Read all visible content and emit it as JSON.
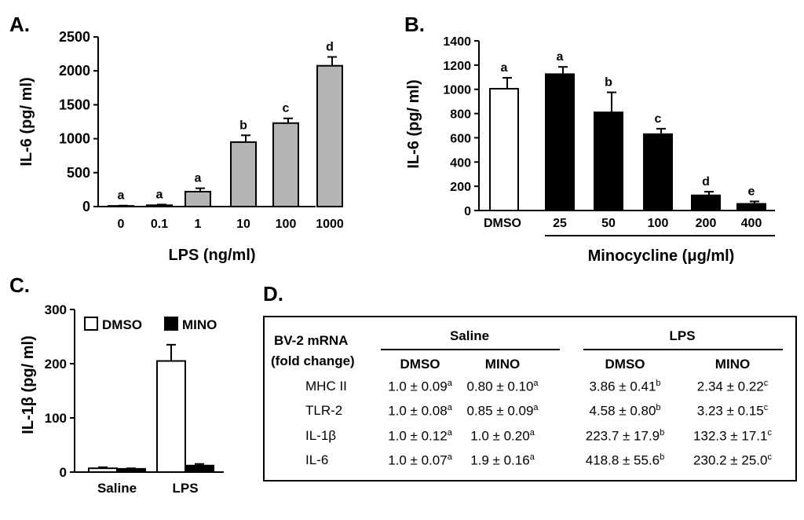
{
  "chart_data": [
    {
      "panel": "A.",
      "type": "bar",
      "xlabel": "LPS (ng/ml)",
      "ylabel": "IL-6 (pg/ ml)",
      "ylim": [
        0,
        2500
      ],
      "yticks": [
        "0",
        "500",
        "1000",
        "1500",
        "2000",
        "2500"
      ],
      "categories": [
        "0",
        "0.1",
        "1",
        "10",
        "100",
        "1000"
      ],
      "values": [
        10,
        20,
        220,
        950,
        1230,
        2075
      ],
      "errors": [
        5,
        10,
        50,
        100,
        70,
        130
      ],
      "letters": [
        "a",
        "a",
        "a",
        "b",
        "c",
        "d"
      ],
      "colors": [
        "#b4b4b4",
        "#b4b4b4",
        "#b4b4b4",
        "#b4b4b4",
        "#b4b4b4",
        "#b4b4b4"
      ]
    },
    {
      "panel": "B.",
      "type": "bar",
      "xlabel": "Minocycline (μg/ml)",
      "ylabel": "IL-6 (pg/ ml)",
      "ylim": [
        0,
        1400
      ],
      "yticks": [
        "0",
        "200",
        "400",
        "600",
        "800",
        "1000",
        "1200",
        "1400"
      ],
      "categories": [
        "DMSO",
        "25",
        "50",
        "100",
        "200",
        "400"
      ],
      "values": [
        1005,
        1125,
        810,
        630,
        125,
        55
      ],
      "errors": [
        90,
        60,
        165,
        45,
        30,
        20
      ],
      "letters": [
        "a",
        "a",
        "b",
        "c",
        "d",
        "e"
      ],
      "colors": [
        "#ffffff",
        "#000000",
        "#000000",
        "#000000",
        "#000000",
        "#000000"
      ]
    },
    {
      "panel": "C.",
      "type": "bar",
      "ylabel": "IL-1β (pg/ ml)",
      "ylim": [
        0,
        300
      ],
      "yticks": [
        "0",
        "100",
        "200",
        "300"
      ],
      "categories": [
        "Saline",
        "LPS"
      ],
      "legend_position": "top",
      "series": [
        {
          "name": "DMSO",
          "color": "#ffffff",
          "values": [
            7,
            205
          ],
          "errors": [
            2,
            30
          ]
        },
        {
          "name": "MINO",
          "color": "#000000",
          "values": [
            6,
            12
          ],
          "errors": [
            1,
            3
          ]
        }
      ]
    },
    {
      "panel": "D.",
      "type": "table",
      "row_header": [
        "BV-2 mRNA",
        "(fold change)"
      ],
      "groups": [
        "Saline",
        "LPS"
      ],
      "subheaders": [
        "DMSO",
        "MINO",
        "DMSO",
        "MINO"
      ],
      "rows": [
        {
          "label": "MHC II",
          "cells": [
            [
              "1.0 ± 0.09",
              "a"
            ],
            [
              "0.80 ± 0.10",
              "a"
            ],
            [
              "3.86 ± 0.41",
              "b"
            ],
            [
              "2.34 ± 0.22",
              "c"
            ]
          ]
        },
        {
          "label": "TLR-2",
          "cells": [
            [
              "1.0  ± 0.08",
              "a"
            ],
            [
              "0.85 ± 0.09",
              "a"
            ],
            [
              "4.58  ± 0.80",
              "b"
            ],
            [
              "3.23 ± 0.15",
              "c"
            ]
          ]
        },
        {
          "label": "IL-1β",
          "cells": [
            [
              "1.0  ± 0.12",
              "a"
            ],
            [
              "1.0  ± 0.20",
              "a"
            ],
            [
              "223.7 ± 17.9",
              "b"
            ],
            [
              "132.3 ± 17.1",
              "c"
            ]
          ]
        },
        {
          "label": "IL-6",
          "cells": [
            [
              "1.0  ± 0.07",
              "a"
            ],
            [
              "1.9  ± 0.16",
              "a"
            ],
            [
              "418.8 ± 55.6",
              "b"
            ],
            [
              "230.2 ± 25.0",
              "c"
            ]
          ]
        }
      ]
    }
  ]
}
